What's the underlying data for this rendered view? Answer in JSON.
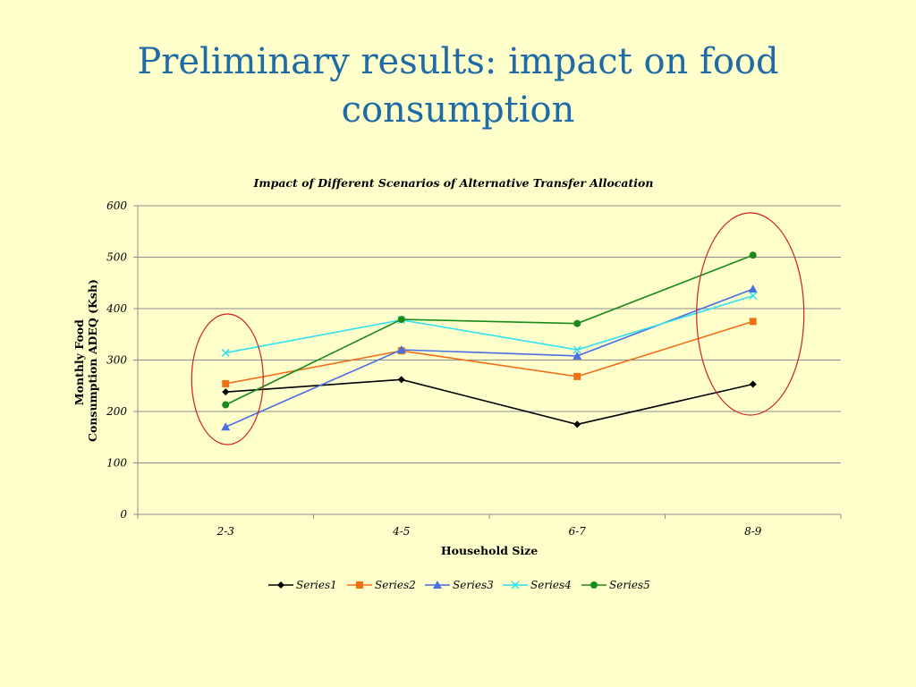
{
  "slide": {
    "title_line1": "Preliminary results: impact on food",
    "title_line2": "consumption"
  },
  "chart_data": {
    "type": "line",
    "title": "Impact of Different Scenarios of Alternative Transfer Allocation",
    "xlabel": "Household Size",
    "ylabel_line1": "Monthly Food",
    "ylabel_line2": "Consumption ADEQ (Ksh)",
    "categories": [
      "2-3",
      "4-5",
      "6-7",
      "8-9"
    ],
    "ylim": [
      0,
      600
    ],
    "yticks": [
      0,
      100,
      200,
      300,
      400,
      500,
      600
    ],
    "grid": true,
    "legend_position": "bottom",
    "series": [
      {
        "name": "Series1",
        "values": [
          238,
          262,
          175,
          253
        ],
        "color": "#000000",
        "marker": "diamond"
      },
      {
        "name": "Series2",
        "values": [
          254,
          318,
          268,
          375
        ],
        "color": "#F07018",
        "marker": "square"
      },
      {
        "name": "Series3",
        "values": [
          170,
          320,
          308,
          438
        ],
        "color": "#4A6FE0",
        "marker": "triangle"
      },
      {
        "name": "Series4",
        "values": [
          314,
          378,
          320,
          425
        ],
        "color": "#30E0F0",
        "marker": "x"
      },
      {
        "name": "Series5",
        "values": [
          213,
          379,
          371,
          504
        ],
        "color": "#1A8A1A",
        "marker": "circle"
      }
    ],
    "highlight_color": "#D02020"
  }
}
